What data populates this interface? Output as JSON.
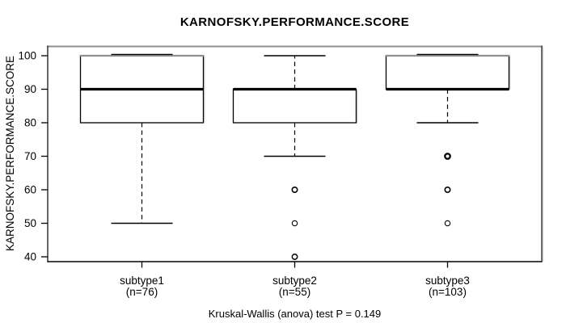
{
  "chart_data": {
    "type": "boxplot",
    "title": "KARNOFSKY.PERFORMANCE.SCORE",
    "ylabel": "KARNOFSKY.PERFORMANCE.SCORE",
    "caption": "Kruskal-Wallis (anova) test P = 0.149",
    "ylim": [
      40,
      100
    ],
    "yticks": [
      40,
      50,
      60,
      70,
      80,
      90,
      100
    ],
    "grid": false,
    "legend": "none",
    "groups": [
      {
        "label": "subtype1",
        "sublabel": "(n=76)",
        "n": 76,
        "whisker_low": 50,
        "q1": 80,
        "median": 90,
        "q3": 100,
        "whisker_high": 100,
        "outliers": [],
        "outlier_weights": []
      },
      {
        "label": "subtype2",
        "sublabel": "(n=55)",
        "n": 55,
        "whisker_low": 70,
        "q1": 80,
        "median": 90,
        "q3": 90,
        "whisker_high": 100,
        "outliers": [
          60,
          50,
          40
        ],
        "outlier_weights": [
          1.6,
          1.1,
          1.5
        ]
      },
      {
        "label": "subtype3",
        "sublabel": "(n=103)",
        "n": 103,
        "whisker_low": 80,
        "q1": 90,
        "median": 90,
        "q3": 100,
        "whisker_high": 100,
        "outliers": [
          70,
          60,
          50
        ],
        "outlier_weights": [
          2.3,
          1.6,
          1.1
        ]
      }
    ]
  },
  "colors": {
    "line": "#000000",
    "frame_top": "#8f8f8f",
    "frame_shadow": "#c9c9c9",
    "background": "#ffffff"
  }
}
